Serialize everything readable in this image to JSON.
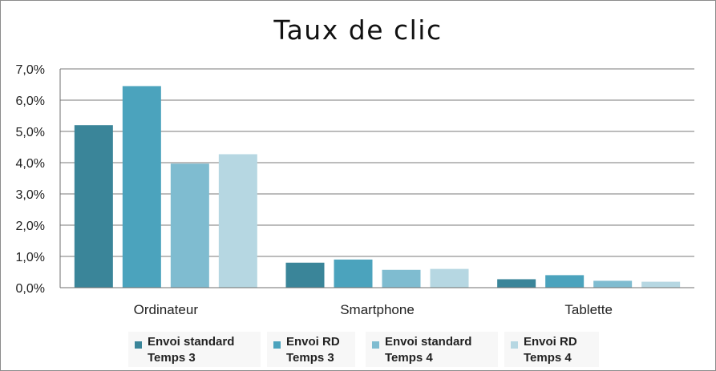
{
  "chart_data": {
    "type": "bar",
    "title": "Taux de clic",
    "categories": [
      "Ordinateur",
      "Smartphone",
      "Tablette"
    ],
    "series": [
      {
        "name": "Envoi standard\nTemps 3",
        "color": "#3a8599",
        "values": [
          5.2,
          0.8,
          0.27
        ]
      },
      {
        "name": "Envoi RD\nTemps 3",
        "color": "#4ba3bd",
        "values": [
          6.45,
          0.9,
          0.4
        ]
      },
      {
        "name": "Envoi standard\nTemps 4",
        "color": "#7fbcd0",
        "values": [
          3.97,
          0.57,
          0.22
        ]
      },
      {
        "name": "Envoi RD\nTemps 4",
        "color": "#b6d7e2",
        "values": [
          4.27,
          0.6,
          0.19
        ]
      }
    ],
    "yticks": [
      "0,0%",
      "1,0%",
      "2,0%",
      "3,0%",
      "4,0%",
      "5,0%",
      "6,0%",
      "7,0%"
    ],
    "ylim": [
      0,
      7
    ],
    "grid": true,
    "legend_position": "bottom"
  }
}
